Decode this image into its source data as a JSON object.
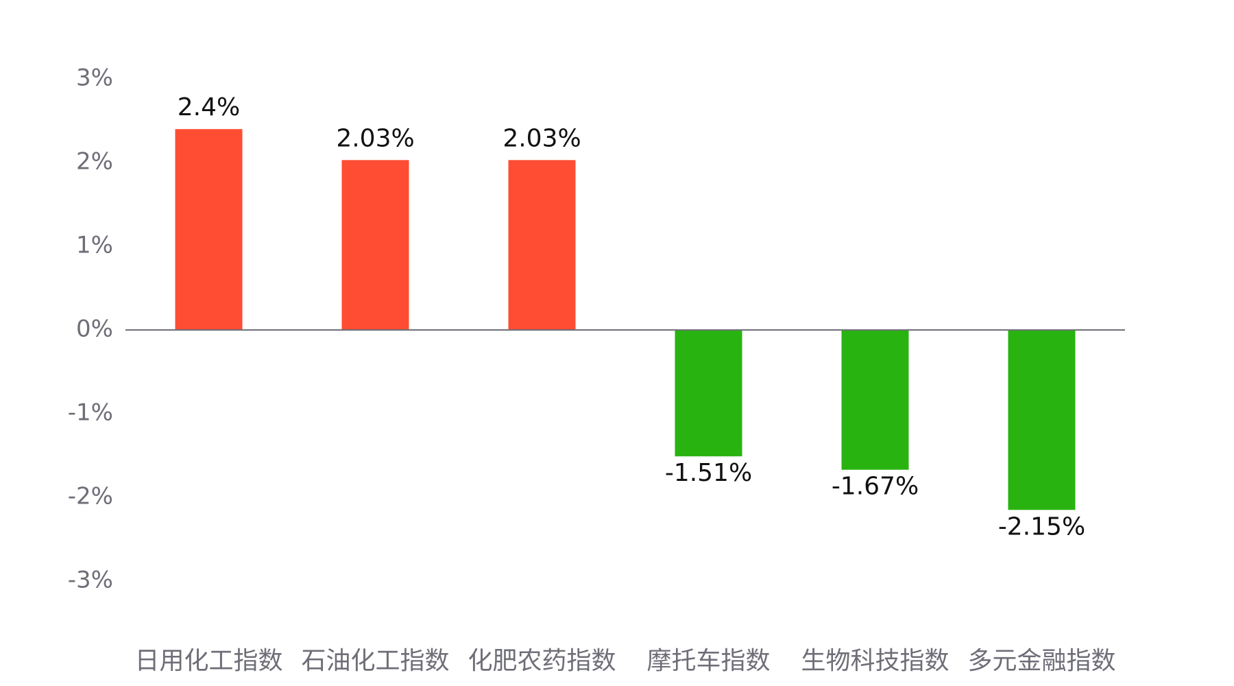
{
  "chart_data": {
    "type": "bar",
    "categories": [
      "日用化工指数",
      "石油化工指数",
      "化肥农药指数",
      "摩托车指数",
      "生物科技指数",
      "多元金融指数"
    ],
    "values": [
      2.4,
      2.03,
      2.03,
      -1.51,
      -1.67,
      -2.15
    ],
    "value_labels": [
      "2.4%",
      "2.03%",
      "2.03%",
      "-1.51%",
      "-1.67%",
      "-2.15%"
    ],
    "colors": [
      "#ff4d33",
      "#ff4d33",
      "#ff4d33",
      "#29b311",
      "#29b311",
      "#29b311"
    ],
    "ylim": [
      -3,
      3
    ],
    "yticks": [
      {
        "value": 3,
        "label": "3%"
      },
      {
        "value": 2,
        "label": "2%"
      },
      {
        "value": 1,
        "label": "1%"
      },
      {
        "value": 0,
        "label": "0%"
      },
      {
        "value": -1,
        "label": "-1%"
      },
      {
        "value": -2,
        "label": "-2%"
      },
      {
        "value": -3,
        "label": "-3%"
      }
    ],
    "grid": false
  }
}
